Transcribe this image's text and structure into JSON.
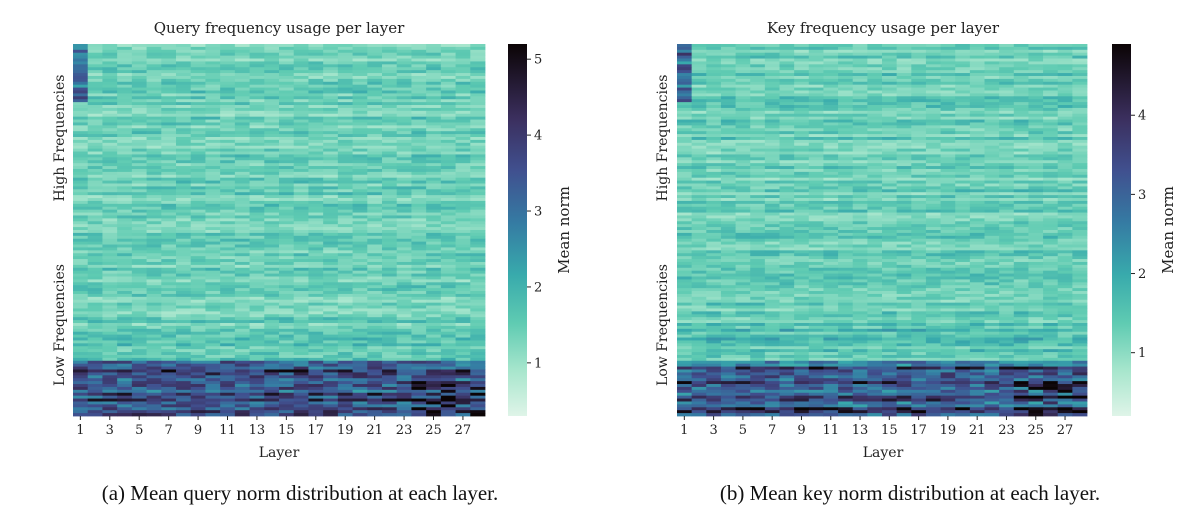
{
  "chart_data": [
    {
      "type": "heatmap",
      "title": "Query frequency usage per layer",
      "xlabel": "Layer",
      "ylabel_groups": [
        "High Frequencies",
        "Low Frequencies"
      ],
      "x_ticks": [
        "1",
        "3",
        "5",
        "7",
        "9",
        "11",
        "13",
        "15",
        "17",
        "19",
        "21",
        "23",
        "25",
        "27"
      ],
      "colorbar": {
        "label": "Mean norm",
        "range": [
          0.3,
          5.2
        ],
        "ticks": [
          "1",
          "2",
          "3",
          "4",
          "5"
        ]
      },
      "typical_low": 0.85,
      "typical_high": 1.7,
      "caption": "(a) Mean query norm distribution at each layer."
    },
    {
      "type": "heatmap",
      "title": "Key frequency usage per layer",
      "xlabel": "Layer",
      "ylabel_groups": [
        "High Frequencies",
        "Low Frequencies"
      ],
      "x_ticks": [
        "1",
        "3",
        "5",
        "7",
        "9",
        "11",
        "13",
        "15",
        "17",
        "19",
        "21",
        "23",
        "25",
        "27"
      ],
      "colorbar": {
        "label": "Mean norm",
        "range": [
          0.2,
          4.9
        ],
        "ticks": [
          "1",
          "2",
          "3",
          "4"
        ]
      },
      "typical_low": 0.7,
      "typical_high": 1.6,
      "caption": "(b) Mean key norm distribution at each layer."
    }
  ],
  "colors": {
    "cmap_low": "#e8f7ef",
    "cmap_high": "#2a1a2e"
  }
}
